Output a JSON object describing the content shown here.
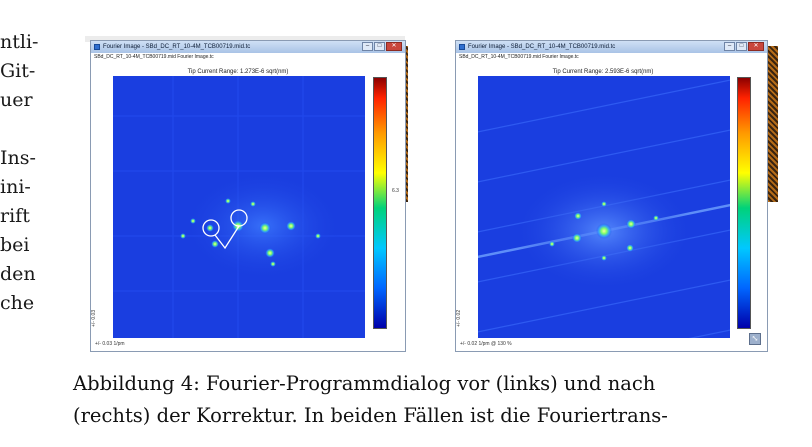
{
  "body_text_fragments": [
    "ntli-",
    "Git-",
    "uer",
    "",
    "Ins-",
    "ini-",
    "rift",
    "bei",
    "den",
    "che"
  ],
  "windows": [
    {
      "title": "Fourier Image - SBd_DC_RT_10-4M_TCB00719.mid.tc",
      "filename": "SBd_DC_RT_10-4M_TCB00719.mid Fourier Image.tc",
      "range_label": "Tip Current Range: 1.273E-6 sqrt(nm)",
      "scale_label": "+/- 0.03 1/pm",
      "axis_label": "+/- 0.03",
      "side_value": "6.3"
    },
    {
      "title": "Fourier Image - SBd_DC_RT_10-4M_TCB00719.mid.tc",
      "filename": "SBd_DC_RT_10-4M_TCB00719.mid Fourier Image.tc",
      "range_label": "Tip Current Range: 2.593E-6 sqrt(nm)",
      "scale_label": "+/- 0.02 1/pm @ 130 %",
      "axis_label": "+/- 0.02"
    }
  ],
  "window_buttons": {
    "minimize": "–",
    "maximize": "□",
    "close": "✕"
  },
  "resize_handle_icon": "⤡",
  "caption": {
    "line1": "Abbildung 4: Fourier-Programmdialog vor (links) und nach",
    "line2": "(rechts) der Korrektur. In beiden Fällen ist die Fouriertrans-"
  },
  "colors": {
    "spectrum_bg": "#1a3ee0",
    "peak": "#d8ff5a",
    "marker_circle": "#ffffff"
  }
}
